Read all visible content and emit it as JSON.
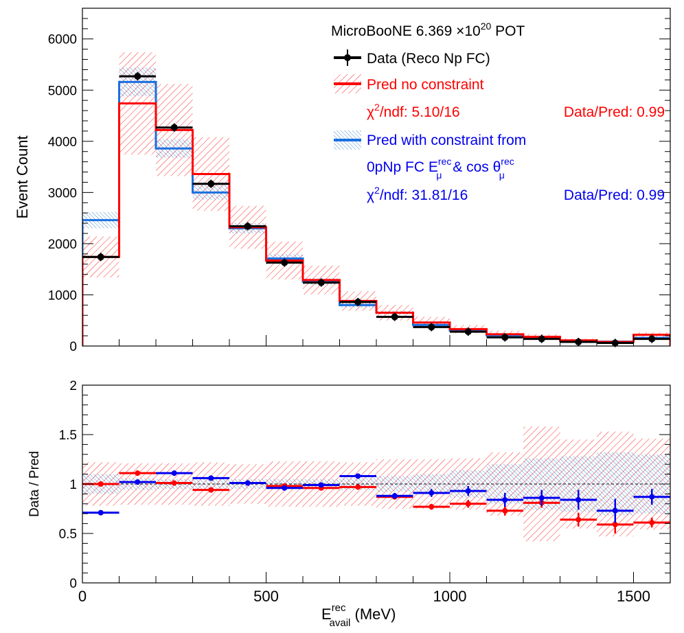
{
  "chart_data": [
    {
      "type": "bar",
      "panel": "top",
      "ylabel": "Event Count",
      "ylim": [
        0,
        6600
      ],
      "xlim": [
        0,
        1600
      ],
      "yticks": [
        0,
        1000,
        2000,
        3000,
        4000,
        5000,
        6000
      ],
      "bin_edges": [
        0,
        100,
        200,
        300,
        400,
        500,
        600,
        700,
        800,
        900,
        1000,
        1100,
        1200,
        1300,
        1400,
        1500,
        1600
      ],
      "legend": {
        "header": "MicroBooNE 6.369 ×10",
        "header_sup": "20",
        "header_tail": " POT",
        "data_label": "Data (Reco Np FC)",
        "pred_nc_label": "Pred no constraint",
        "nc_chi2_main": "χ",
        "nc_chi2_sup": "2",
        "nc_chi2_tail": "/ndf: 5.10/16",
        "nc_ratio": "Data/Pred: 0.99",
        "pred_c_label": "Pred with constraint from",
        "c_line2_a": "0pNp FC E",
        "c_line2_sup1": "rec",
        "c_line2_sub1": "μ",
        "c_line2_b": " & cos θ",
        "c_line2_sup2": "rec",
        "c_line2_sub2": "μ",
        "c_chi2_main": "χ",
        "c_chi2_sup": "2",
        "c_chi2_tail": "/ndf: 31.81/16",
        "c_ratio": "Data/Pred: 0.99"
      },
      "series": [
        {
          "name": "Data (Reco Np FC)",
          "color": "#000000",
          "values": [
            1740,
            5270,
            4270,
            3170,
            2340,
            1630,
            1240,
            860,
            570,
            370,
            280,
            170,
            140,
            80,
            60,
            140
          ]
        },
        {
          "name": "Pred no constraint",
          "color": "#ff0000",
          "values": [
            1740,
            4740,
            4220,
            3360,
            2320,
            1670,
            1290,
            880,
            650,
            460,
            330,
            230,
            180,
            110,
            80,
            220
          ],
          "uncertainty": [
            400,
            1000,
            900,
            720,
            420,
            370,
            280,
            190,
            150,
            110,
            80,
            70,
            55,
            35,
            30,
            50
          ]
        },
        {
          "name": "Pred with constraint from 0pNp FC",
          "color": "#1a6fdf",
          "values": [
            2460,
            5160,
            3860,
            3000,
            2300,
            1710,
            1260,
            800,
            650,
            410,
            300,
            210,
            170,
            100,
            85,
            160
          ],
          "uncertainty": [
            160,
            280,
            180,
            140,
            100,
            85,
            65,
            50,
            40,
            30,
            25,
            20,
            20,
            15,
            15,
            20
          ]
        }
      ]
    },
    {
      "type": "scatter",
      "panel": "bottom",
      "ylabel": "Data / Pred",
      "xlabel_main": "E",
      "xlabel_sup": "rec",
      "xlabel_sub": "avail",
      "xlabel_tail": " (MeV)",
      "ylim": [
        0,
        2
      ],
      "xlim": [
        0,
        1600
      ],
      "yticks": [
        0,
        0.5,
        1,
        1.5,
        2
      ],
      "ytick_labels": [
        "0",
        "0.5",
        "1",
        "1.5",
        "2"
      ],
      "xticks": [
        0,
        500,
        1000,
        1500
      ],
      "xtick_labels": [
        "0",
        "500",
        "1000",
        "1500"
      ],
      "reference_line": 1,
      "series": [
        {
          "name": "Pred no constraint",
          "color": "#ff0000",
          "values": [
            1.0,
            1.11,
            1.01,
            0.94,
            1.01,
            0.98,
            0.96,
            0.97,
            0.87,
            0.77,
            0.8,
            0.73,
            0.81,
            0.64,
            0.59,
            0.61
          ],
          "yerr": [
            0,
            0,
            0,
            0,
            0,
            0,
            0,
            0,
            0,
            0.03,
            0.04,
            0.05,
            0.05,
            0.07,
            0.09,
            0.05
          ],
          "band": [
            0.22,
            0.21,
            0.21,
            0.22,
            0.2,
            0.23,
            0.23,
            0.22,
            0.25,
            0.25,
            0.26,
            0.32,
            0.58,
            0.45,
            0.53,
            0.46
          ]
        },
        {
          "name": "Pred with constraint",
          "color": "#0000ee",
          "values": [
            0.71,
            1.02,
            1.11,
            1.06,
            1.01,
            0.96,
            0.99,
            1.08,
            0.88,
            0.91,
            0.93,
            0.84,
            0.86,
            0.84,
            0.73,
            0.87
          ],
          "yerr": [
            0,
            0,
            0,
            0,
            0,
            0,
            0,
            0,
            0.03,
            0.04,
            0.05,
            0.07,
            0.08,
            0.1,
            0.12,
            0.08
          ],
          "band": [
            0.1,
            0.06,
            0.05,
            0.05,
            0.05,
            0.05,
            0.05,
            0.06,
            0.08,
            0.1,
            0.14,
            0.2,
            0.26,
            0.28,
            0.32,
            0.3
          ]
        }
      ]
    }
  ]
}
